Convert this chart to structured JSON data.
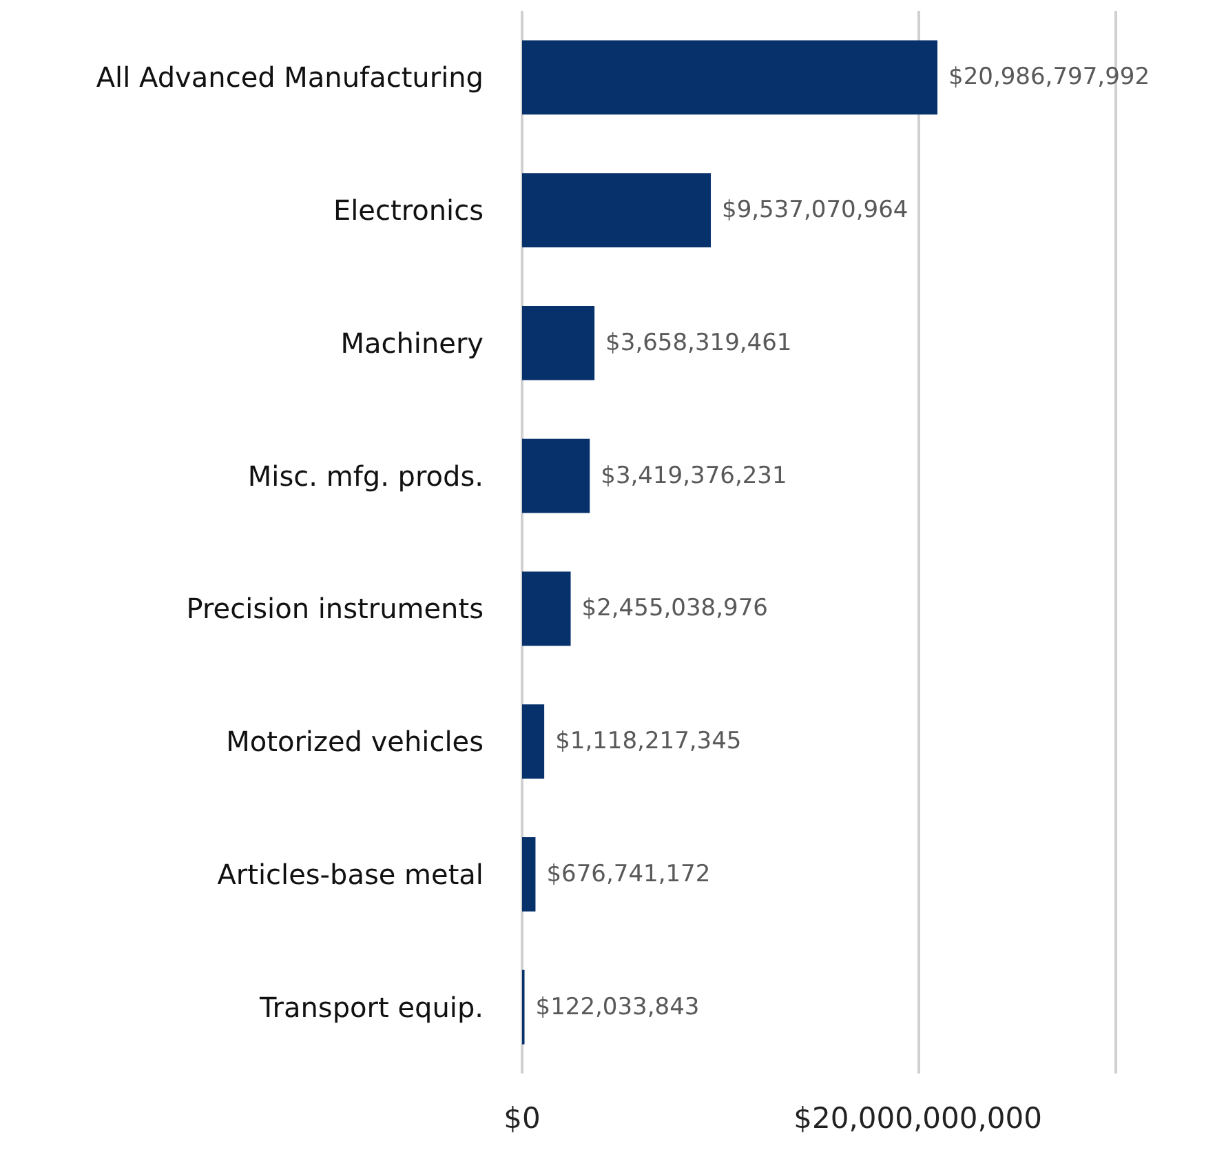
{
  "chart_data": {
    "type": "bar",
    "orientation": "horizontal",
    "categories": [
      "All Advanced Manufacturing",
      "Electronics",
      "Machinery",
      "Misc. mfg. prods.",
      "Precision instruments",
      "Motorized vehicles",
      "Articles-base metal",
      "Transport equip."
    ],
    "values": [
      20986797992,
      9537070964,
      3658319461,
      3419376231,
      2455038976,
      1118217345,
      676741172,
      122033843
    ],
    "value_labels": [
      "$20,986,797,992",
      "$9,537,070,964",
      "$3,658,319,461",
      "$3,419,376,231",
      "$2,455,038,976",
      "$1,118,217,345",
      "$676,741,172",
      "$122,033,843"
    ],
    "color": "#06316b",
    "xlim": [
      0,
      30000000000
    ],
    "xticks": [
      {
        "value": 0,
        "label": "$0"
      },
      {
        "value": 20000000000,
        "label": "$20,000,000,000"
      }
    ],
    "grid": "x"
  }
}
